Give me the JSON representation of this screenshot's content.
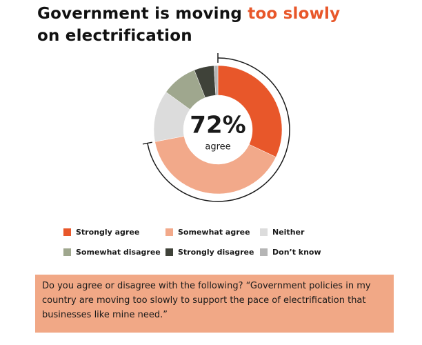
{
  "chart_data": {
    "type": "donut",
    "title": {
      "lead": "Government is moving",
      "highlight": "too slowly",
      "tail": "on electrification"
    },
    "center_label": {
      "value": 72,
      "label": "72%"
    },
    "center_caption": "agree",
    "categories": [
      "Strongly agree",
      "Somewhat agree",
      "Neither",
      "Somewhat disagree",
      "Strongly disagree",
      "Don’t know"
    ],
    "values": [
      32,
      40,
      13,
      9,
      5,
      1
    ],
    "colors": [
      "#e8572a",
      "#f2a98a",
      "#dcdcdc",
      "#9fa78e",
      "#3f4239",
      "#b5b5b5"
    ],
    "note": "Do you agree or disagree with the following? “Government policies in my country are moving too slowly to support the pace of electrification that businesses like mine need.”"
  }
}
